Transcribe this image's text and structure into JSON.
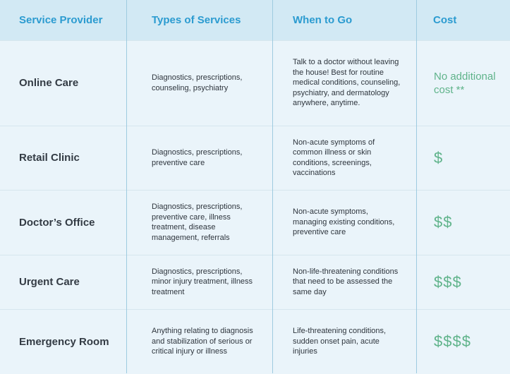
{
  "headers": [
    "Service Provider",
    "Types of Services",
    "When to Go",
    "Cost"
  ],
  "rows": [
    {
      "provider": "Online Care",
      "types": "Diagnostics, prescriptions, counseling, psychiatry",
      "when": "Talk to a doctor without leaving the house! Best for routine medical conditions, counseling, psychiatry, and dermatology anywhere, anytime.",
      "cost": "No additional cost **"
    },
    {
      "provider": "Retail Clinic",
      "types": "Diagnostics, prescriptions, preventive care",
      "when": "Non-acute symptoms of common illness or skin conditions, screenings, vaccinations",
      "cost": "$"
    },
    {
      "provider": "Doctor’s Office",
      "types": "Diagnostics, prescriptions, preventive care, illness treatment, disease management, referrals",
      "when": "Non-acute symptoms, managing existing conditions, preventive care",
      "cost": "$$"
    },
    {
      "provider": "Urgent Care",
      "types": "Diagnostics, prescriptions, minor injury treatment, illness treatment",
      "when": "Non-life-threatening conditions that need to be assessed the same day",
      "cost": "$$$"
    },
    {
      "provider": "Emergency Room",
      "types": "Anything relating to diagnosis and stabilization of serious or critical injury or illness",
      "when": "Life-threatening conditions, sudden onset pain, acute injuries",
      "cost": "$$$$"
    }
  ],
  "colors": {
    "header_bg": "#d2e9f4",
    "header_text": "#2b9bd0",
    "row_bg": "#eaf4fa",
    "cost_text": "#5fb38a",
    "divider": "#9ecbe0"
  }
}
